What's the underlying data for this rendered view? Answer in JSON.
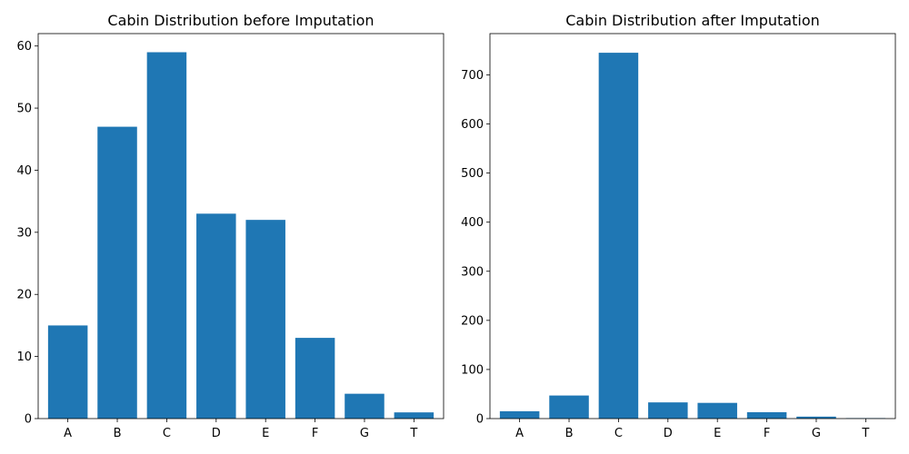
{
  "chart_data": [
    {
      "type": "bar",
      "title": "Cabin Distribution before Imputation",
      "xlabel": "",
      "ylabel": "",
      "categories": [
        "A",
        "B",
        "C",
        "D",
        "E",
        "F",
        "G",
        "T"
      ],
      "values": [
        15,
        47,
        59,
        33,
        32,
        13,
        4,
        1
      ],
      "ylim": [
        0,
        62
      ],
      "yticks": [
        0,
        10,
        20,
        30,
        40,
        50,
        60
      ],
      "grid": false,
      "bar_color": "#1f77b4"
    },
    {
      "type": "bar",
      "title": "Cabin Distribution after Imputation",
      "xlabel": "",
      "ylabel": "",
      "categories": [
        "A",
        "B",
        "C",
        "D",
        "E",
        "F",
        "G",
        "T"
      ],
      "values": [
        15,
        47,
        745,
        33,
        32,
        13,
        4,
        1
      ],
      "ylim": [
        0,
        784
      ],
      "yticks": [
        0,
        100,
        200,
        300,
        400,
        500,
        600,
        700
      ],
      "grid": false,
      "bar_color": "#1f77b4"
    }
  ]
}
